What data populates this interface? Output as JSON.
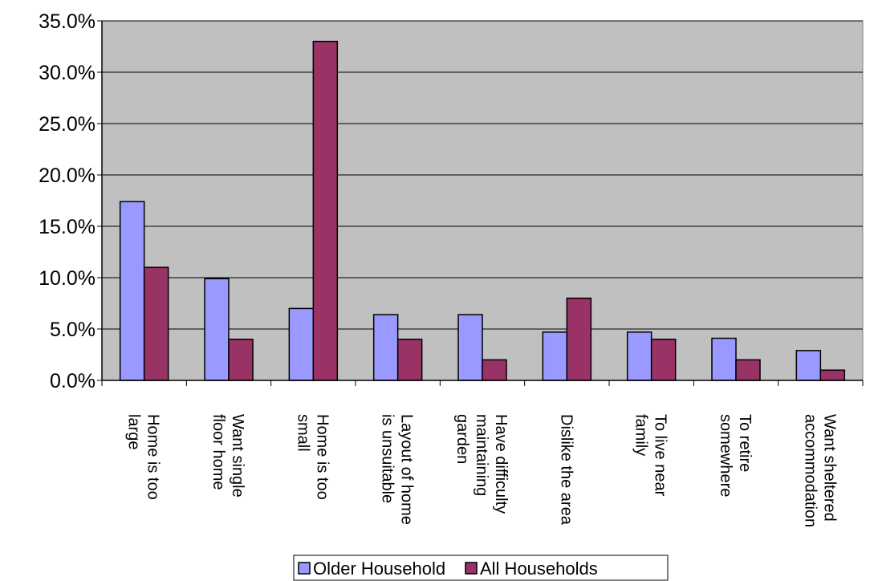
{
  "chart_data": {
    "type": "bar",
    "categories": [
      [
        "Home is too",
        "large"
      ],
      [
        "Want single",
        "floor home"
      ],
      [
        "Home is too",
        "small"
      ],
      [
        "Layout of home",
        "is unsuitable"
      ],
      [
        "Have difficulty",
        "maintaining",
        "garden"
      ],
      [
        "Dislike the area"
      ],
      [
        "To live near",
        "family"
      ],
      [
        "To retire",
        "somewhere"
      ],
      [
        "Want sheltered",
        "accommodation"
      ]
    ],
    "series": [
      {
        "name": "Older Household",
        "color": "#9999ff",
        "values": [
          17.4,
          9.9,
          7.0,
          6.4,
          6.4,
          4.7,
          4.7,
          4.1,
          2.9
        ]
      },
      {
        "name": "All Households",
        "color": "#993366",
        "values": [
          11.0,
          4.0,
          33.0,
          4.0,
          2.0,
          8.0,
          4.0,
          2.0,
          1.0
        ]
      }
    ],
    "ylim": [
      0,
      35
    ],
    "yticks": [
      "0.0%",
      "5.0%",
      "10.0%",
      "15.0%",
      "20.0%",
      "25.0%",
      "30.0%",
      "35.0%"
    ],
    "plot_background": "#c0c0c0",
    "grid": true,
    "legend_position": "bottom"
  }
}
